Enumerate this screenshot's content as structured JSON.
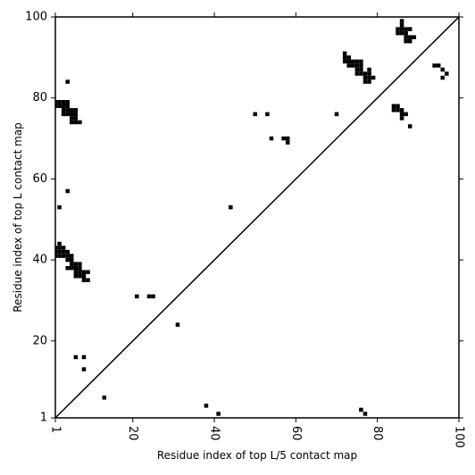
{
  "chart_data": {
    "type": "heatmap",
    "title": "",
    "xlabel": "Residue index of top L/5 contact map",
    "ylabel": "Residue index of top L contact map",
    "xlim": [
      1,
      100
    ],
    "ylim": [
      1,
      100
    ],
    "xticks": [
      1,
      20,
      40,
      60,
      80,
      100
    ],
    "yticks": [
      1,
      20,
      40,
      60,
      80,
      100
    ],
    "x_ticklabel_rotation": 90,
    "diagonal": true,
    "grid": false,
    "cell_color": "#000000",
    "background": "#ffffff",
    "cells": [
      [
        1,
        79
      ],
      [
        2,
        79
      ],
      [
        3,
        79
      ],
      [
        4,
        79
      ],
      [
        1,
        78
      ],
      [
        2,
        78
      ],
      [
        3,
        78
      ],
      [
        4,
        78
      ],
      [
        3,
        77
      ],
      [
        4,
        77
      ],
      [
        5,
        77
      ],
      [
        6,
        77
      ],
      [
        3,
        76
      ],
      [
        4,
        76
      ],
      [
        5,
        76
      ],
      [
        6,
        76
      ],
      [
        5,
        75
      ],
      [
        6,
        75
      ],
      [
        5,
        74
      ],
      [
        6,
        74
      ],
      [
        7,
        74
      ],
      [
        4,
        84
      ],
      [
        4,
        57
      ],
      [
        2,
        53
      ],
      [
        2,
        44
      ],
      [
        1,
        43
      ],
      [
        2,
        43
      ],
      [
        3,
        43
      ],
      [
        1,
        42
      ],
      [
        2,
        42
      ],
      [
        3,
        42
      ],
      [
        4,
        42
      ],
      [
        1,
        41
      ],
      [
        2,
        41
      ],
      [
        3,
        41
      ],
      [
        4,
        41
      ],
      [
        5,
        41
      ],
      [
        4,
        40
      ],
      [
        5,
        40
      ],
      [
        5,
        39
      ],
      [
        6,
        39
      ],
      [
        7,
        39
      ],
      [
        4,
        38
      ],
      [
        5,
        38
      ],
      [
        6,
        38
      ],
      [
        7,
        38
      ],
      [
        6,
        37
      ],
      [
        7,
        37
      ],
      [
        8,
        37
      ],
      [
        9,
        37
      ],
      [
        6,
        36
      ],
      [
        7,
        36
      ],
      [
        8,
        36
      ],
      [
        8,
        35
      ],
      [
        9,
        35
      ],
      [
        6,
        16
      ],
      [
        8,
        16
      ],
      [
        8,
        13
      ],
      [
        13,
        6
      ],
      [
        21,
        31
      ],
      [
        24,
        31
      ],
      [
        25,
        31
      ],
      [
        31,
        24
      ],
      [
        38,
        4
      ],
      [
        41,
        2
      ],
      [
        44,
        53
      ],
      [
        50,
        76
      ],
      [
        53,
        76
      ],
      [
        54,
        70
      ],
      [
        57,
        70
      ],
      [
        58,
        70
      ],
      [
        58,
        69
      ],
      [
        70,
        76
      ],
      [
        72,
        91
      ],
      [
        72,
        90
      ],
      [
        73,
        90
      ],
      [
        72,
        89
      ],
      [
        73,
        89
      ],
      [
        74,
        89
      ],
      [
        75,
        89
      ],
      [
        76,
        89
      ],
      [
        73,
        88
      ],
      [
        74,
        88
      ],
      [
        75,
        88
      ],
      [
        76,
        88
      ],
      [
        75,
        87
      ],
      [
        76,
        87
      ],
      [
        78,
        87
      ],
      [
        75,
        86
      ],
      [
        76,
        86
      ],
      [
        77,
        86
      ],
      [
        78,
        86
      ],
      [
        77,
        85
      ],
      [
        78,
        85
      ],
      [
        79,
        85
      ],
      [
        77,
        84
      ],
      [
        78,
        84
      ],
      [
        76,
        3
      ],
      [
        77,
        2
      ],
      [
        84,
        78
      ],
      [
        85,
        78
      ],
      [
        84,
        77
      ],
      [
        85,
        77
      ],
      [
        86,
        77
      ],
      [
        86,
        76
      ],
      [
        87,
        76
      ],
      [
        86,
        75
      ],
      [
        88,
        73
      ],
      [
        86,
        99
      ],
      [
        86,
        98
      ],
      [
        85,
        97
      ],
      [
        86,
        97
      ],
      [
        87,
        97
      ],
      [
        88,
        97
      ],
      [
        85,
        96
      ],
      [
        86,
        96
      ],
      [
        87,
        96
      ],
      [
        87,
        95
      ],
      [
        88,
        95
      ],
      [
        89,
        95
      ],
      [
        87,
        94
      ],
      [
        88,
        94
      ],
      [
        94,
        88
      ],
      [
        95,
        88
      ],
      [
        96,
        87
      ],
      [
        97,
        86
      ],
      [
        96,
        85
      ]
    ]
  }
}
